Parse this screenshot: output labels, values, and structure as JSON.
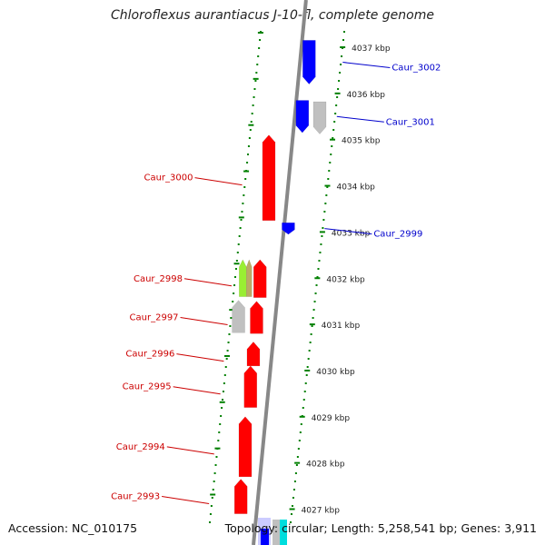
{
  "title": "Chloroflexus aurantiacus J-10-fl, complete genome",
  "accession": "Accession: NC_010175",
  "summary": "Topology: circular; Length: 5,258,541 bp; Genes: 3,911",
  "colors": {
    "forward_strand": "#ff0000",
    "reverse_strand": "#0000ff",
    "pseudo_gene": "#c0c0c0",
    "rna_gene": "#99ee33",
    "rna_gene_2": "#bbaa66",
    "ruler": "#008000",
    "backbone": "#888888",
    "extra_cyan": "#00dddd"
  },
  "kbp_ticks": [
    {
      "label": "4037 kbp",
      "kbp": 4037
    },
    {
      "label": "4036 kbp",
      "kbp": 4036
    },
    {
      "label": "4035 kbp",
      "kbp": 4035
    },
    {
      "label": "4034 kbp",
      "kbp": 4034
    },
    {
      "label": "4033 kbp",
      "kbp": 4033
    },
    {
      "label": "4032 kbp",
      "kbp": 4032
    },
    {
      "label": "4031 kbp",
      "kbp": 4031
    },
    {
      "label": "4030 kbp",
      "kbp": 4030
    },
    {
      "label": "4029 kbp",
      "kbp": 4029
    },
    {
      "label": "4028 kbp",
      "kbp": 4028
    },
    {
      "label": "4027 kbp",
      "kbp": 4027
    }
  ],
  "genes": [
    {
      "label": "Caur_3002",
      "strand": "reverse",
      "start_kbp": 4036.2,
      "end_kbp": 4037.15,
      "color": "#0000ff",
      "labeled": true
    },
    {
      "label": "Caur_3001",
      "strand": "reverse",
      "start_kbp": 4035.15,
      "end_kbp": 4035.85,
      "color": "#0000ff",
      "labeled": true
    },
    {
      "label": "",
      "strand": "reverse",
      "start_kbp": 4035.12,
      "end_kbp": 4035.82,
      "color": "#c0c0c0",
      "labeled": false
    },
    {
      "label": "Caur_3000",
      "strand": "forward",
      "start_kbp": 4033.25,
      "end_kbp": 4035.1,
      "color": "#ff0000",
      "labeled": true
    },
    {
      "label": "Caur_2999",
      "strand": "reverse",
      "start_kbp": 4032.95,
      "end_kbp": 4033.2,
      "color": "#0000ff",
      "labeled": true
    },
    {
      "label": "Caur_2998",
      "strand": "forward",
      "start_kbp": 4031.58,
      "end_kbp": 4032.4,
      "color": "#ff0000",
      "labeled": true
    },
    {
      "label": "",
      "strand": "forward",
      "start_kbp": 4031.6,
      "end_kbp": 4032.4,
      "color": "#99ee33",
      "labeled": false
    },
    {
      "label": "",
      "strand": "forward",
      "start_kbp": 4031.6,
      "end_kbp": 4032.4,
      "color": "#bbaa66",
      "labeled": false
    },
    {
      "label": "Caur_2997",
      "strand": "forward",
      "start_kbp": 4030.8,
      "end_kbp": 4031.5,
      "color": "#ff0000",
      "labeled": true
    },
    {
      "label": "",
      "strand": "forward",
      "start_kbp": 4030.82,
      "end_kbp": 4031.52,
      "color": "#c0c0c0",
      "labeled": false
    },
    {
      "label": "Caur_2996",
      "strand": "forward",
      "start_kbp": 4030.1,
      "end_kbp": 4030.62,
      "color": "#ff0000",
      "labeled": true
    },
    {
      "label": "Caur_2995",
      "strand": "forward",
      "start_kbp": 4029.2,
      "end_kbp": 4030.1,
      "color": "#ff0000",
      "labeled": true
    },
    {
      "label": "Caur_2994",
      "strand": "forward",
      "start_kbp": 4027.7,
      "end_kbp": 4029.0,
      "color": "#ff0000",
      "labeled": true
    },
    {
      "label": "Caur_2993",
      "strand": "forward",
      "start_kbp": 4026.9,
      "end_kbp": 4027.65,
      "color": "#ff0000",
      "labeled": true
    }
  ]
}
